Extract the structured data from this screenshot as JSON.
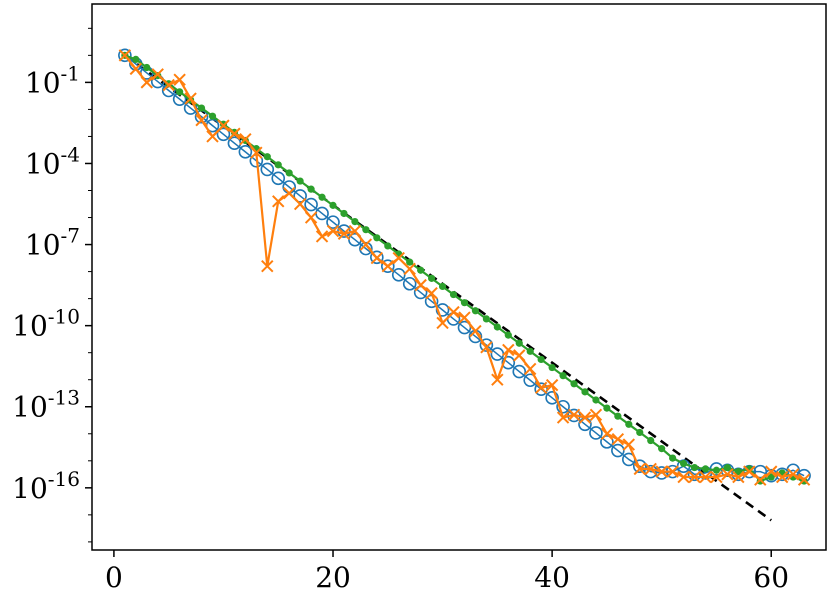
{
  "chart_data": {
    "type": "line",
    "xlabel": "",
    "ylabel": "",
    "xlim": [
      -2,
      65
    ],
    "ylim_log10": [
      -18.3,
      1.9
    ],
    "yscale": "log",
    "grid": false,
    "legend": "none",
    "x_ticks": [
      {
        "value": 0,
        "label": "0"
      },
      {
        "value": 20,
        "label": "20"
      },
      {
        "value": 40,
        "label": "40"
      },
      {
        "value": 60,
        "label": "60"
      }
    ],
    "y_ticks": [
      {
        "exp": -1,
        "base": "10",
        "sup": "-1"
      },
      {
        "exp": -4,
        "base": "10",
        "sup": "-4"
      },
      {
        "exp": -7,
        "base": "10",
        "sup": "-7"
      },
      {
        "exp": -10,
        "base": "10",
        "sup": "-10"
      },
      {
        "exp": -13,
        "base": "10",
        "sup": "-13"
      },
      {
        "exp": -16,
        "base": "10",
        "sup": "-16"
      }
    ],
    "reference_line": {
      "color": "#000000",
      "style": "dashed",
      "log10_points": [
        [
          1,
          0.0
        ],
        [
          60,
          -17.2
        ]
      ]
    },
    "series": [
      {
        "color": "#1f77b4",
        "marker": "open-circle",
        "x": [
          1,
          2,
          3,
          4,
          5,
          6,
          7,
          8,
          9,
          10,
          11,
          12,
          13,
          14,
          15,
          16,
          17,
          18,
          19,
          20,
          21,
          22,
          23,
          24,
          25,
          26,
          27,
          28,
          29,
          30,
          31,
          32,
          33,
          34,
          35,
          36,
          37,
          38,
          39,
          40,
          41,
          42,
          43,
          44,
          45,
          46,
          47,
          48,
          49,
          50,
          51,
          52,
          53,
          54,
          55,
          56,
          57,
          58,
          59,
          60,
          61,
          62,
          63
        ],
        "log10_y": [
          0.0,
          -0.32,
          -0.65,
          -0.97,
          -1.3,
          -1.62,
          -1.95,
          -2.27,
          -2.6,
          -2.92,
          -3.25,
          -3.57,
          -3.9,
          -4.22,
          -4.55,
          -4.87,
          -5.2,
          -5.52,
          -5.85,
          -6.17,
          -6.5,
          -6.82,
          -7.15,
          -7.47,
          -7.8,
          -8.12,
          -8.45,
          -8.77,
          -9.1,
          -9.42,
          -9.75,
          -10.07,
          -10.4,
          -10.72,
          -11.05,
          -11.37,
          -11.7,
          -12.02,
          -12.35,
          -12.67,
          -13.0,
          -13.32,
          -13.65,
          -13.97,
          -14.3,
          -14.62,
          -14.95,
          -15.2,
          -15.4,
          -15.45,
          -15.4,
          -15.2,
          -15.5,
          -15.45,
          -15.3,
          -15.35,
          -15.5,
          -15.4,
          -15.4,
          -15.55,
          -15.5,
          -15.35,
          -15.55
        ]
      },
      {
        "color": "#ff7f0e",
        "marker": "x",
        "x": [
          1,
          2,
          3,
          4,
          5,
          6,
          7,
          8,
          9,
          10,
          11,
          12,
          13,
          14,
          15,
          16,
          17,
          18,
          19,
          20,
          21,
          22,
          23,
          24,
          25,
          26,
          27,
          28,
          29,
          30,
          31,
          32,
          33,
          34,
          35,
          36,
          37,
          38,
          39,
          40,
          41,
          42,
          43,
          44,
          45,
          46,
          47,
          48,
          49,
          50,
          51,
          52,
          53,
          54,
          55,
          56,
          57,
          58,
          59,
          60,
          61,
          62,
          63
        ],
        "log10_y": [
          0.0,
          -0.5,
          -1.0,
          -0.7,
          -1.1,
          -0.9,
          -1.6,
          -2.4,
          -3.0,
          -2.6,
          -2.9,
          -3.1,
          -3.6,
          -7.8,
          -5.4,
          -5.1,
          -5.5,
          -6.0,
          -6.7,
          -6.5,
          -6.6,
          -6.5,
          -7.0,
          -7.5,
          -7.8,
          -7.5,
          -7.9,
          -8.5,
          -8.8,
          -9.9,
          -9.5,
          -9.7,
          -10.2,
          -10.8,
          -12.0,
          -10.9,
          -11.1,
          -11.6,
          -12.3,
          -12.2,
          -13.4,
          -13.3,
          -13.4,
          -13.3,
          -14.0,
          -14.2,
          -14.4,
          -15.3,
          -15.3,
          -15.4,
          -15.4,
          -15.6,
          -15.6,
          -15.6,
          -15.6,
          -15.5,
          -15.6,
          -15.4,
          -15.7,
          -15.4,
          -15.6,
          -15.5,
          -15.7
        ]
      },
      {
        "color": "#2ca02c",
        "marker": "dot",
        "x": [
          1,
          2,
          3,
          4,
          5,
          6,
          7,
          8,
          9,
          10,
          11,
          12,
          13,
          14,
          15,
          16,
          17,
          18,
          19,
          20,
          21,
          22,
          23,
          24,
          25,
          26,
          27,
          28,
          29,
          30,
          31,
          32,
          33,
          34,
          35,
          36,
          37,
          38,
          39,
          40,
          41,
          42,
          43,
          44,
          45,
          46,
          47,
          48,
          49,
          50,
          51,
          52,
          53,
          54,
          55,
          56,
          57,
          58,
          59,
          60,
          61,
          62,
          63
        ],
        "log10_y": [
          0.0,
          -0.15,
          -0.45,
          -0.75,
          -1.05,
          -1.35,
          -1.65,
          -1.95,
          -2.25,
          -2.55,
          -2.85,
          -3.15,
          -3.45,
          -3.75,
          -4.05,
          -4.35,
          -4.65,
          -4.95,
          -5.25,
          -5.55,
          -5.85,
          -6.15,
          -6.45,
          -6.75,
          -7.05,
          -7.35,
          -7.65,
          -7.95,
          -8.25,
          -8.55,
          -8.85,
          -9.15,
          -9.45,
          -9.75,
          -10.05,
          -10.35,
          -10.65,
          -10.95,
          -11.25,
          -11.55,
          -11.85,
          -12.15,
          -12.45,
          -12.75,
          -13.05,
          -13.35,
          -13.65,
          -13.95,
          -14.25,
          -14.55,
          -14.9,
          -15.1,
          -15.25,
          -15.3,
          -15.35,
          -15.25,
          -15.4,
          -15.3,
          -15.75,
          -15.6,
          -15.45,
          -15.6,
          -15.75
        ]
      }
    ]
  }
}
